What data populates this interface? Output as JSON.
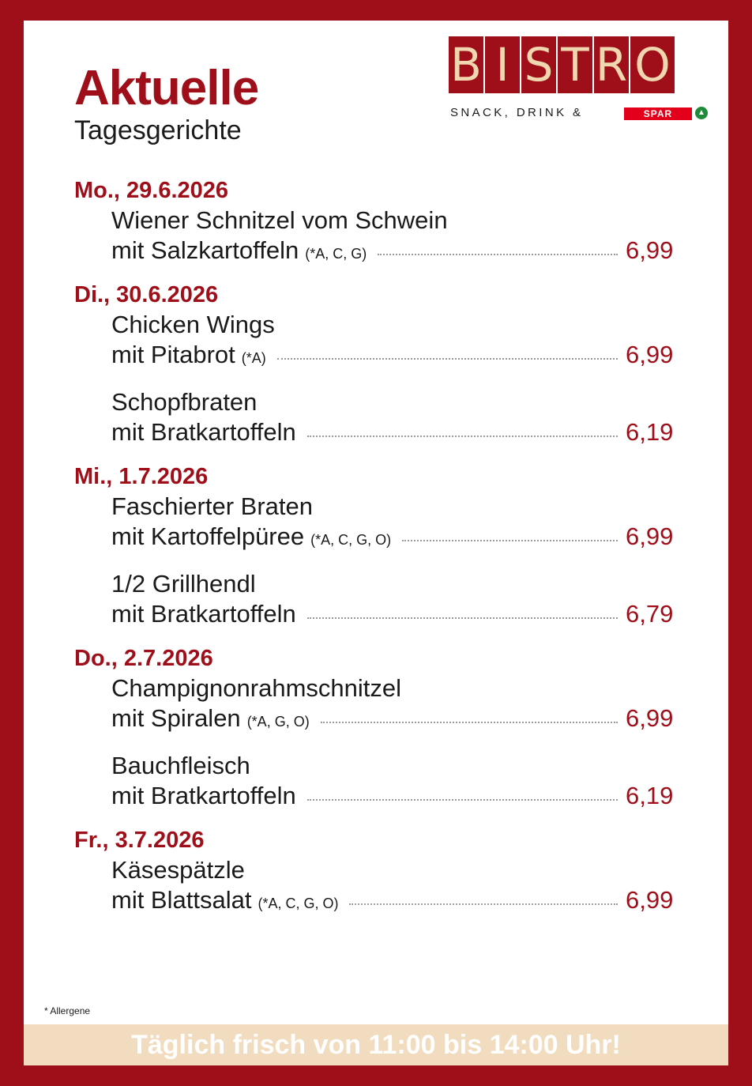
{
  "header": {
    "title": "Aktuelle",
    "subtitle": "Tagesgerichte"
  },
  "logo": {
    "letters": [
      "B",
      "I",
      "S",
      "T",
      "R",
      "O"
    ],
    "tagline": "SNACK, DRINK &",
    "partner": "SPAR"
  },
  "days": [
    {
      "title": "Mo., 29.6.2026",
      "dishes": [
        {
          "name": "Wiener Schnitzel vom Schwein",
          "side": "mit Salzkartoffeln",
          "allergens": "(*A, C, G)",
          "price": "6,99"
        }
      ]
    },
    {
      "title": "Di., 30.6.2026",
      "dishes": [
        {
          "name": "Chicken Wings",
          "side": "mit Pitabrot",
          "allergens": "(*A)",
          "price": "6,99"
        },
        {
          "name": "Schopfbraten",
          "side": "mit Bratkartoffeln",
          "allergens": "",
          "price": "6,19"
        }
      ]
    },
    {
      "title": "Mi., 1.7.2026",
      "dishes": [
        {
          "name": "Faschierter Braten",
          "side": "mit Kartoffelpüree",
          "allergens": "(*A, C, G, O)",
          "price": "6,99"
        },
        {
          "name": "1/2 Grillhendl",
          "side": "mit Bratkartoffeln",
          "allergens": "",
          "price": "6,79"
        }
      ]
    },
    {
      "title": "Do., 2.7.2026",
      "dishes": [
        {
          "name": "Champignonrahmschnitzel",
          "side": "mit Spiralen",
          "allergens": "(*A, G, O)",
          "price": "6,99"
        },
        {
          "name": "Bauchfleisch",
          "side": "mit Bratkartoffeln",
          "allergens": "",
          "price": "6,19"
        }
      ]
    },
    {
      "title": "Fr., 3.7.2026",
      "dishes": [
        {
          "name": "Käsespätzle",
          "side": "mit Blattsalat",
          "allergens": "(*A, C, G, O)",
          "price": "6,99"
        }
      ]
    }
  ],
  "footnote": "* Allergene",
  "banner": "Täglich frisch von 11:00 bis 14:00 Uhr!",
  "colors": {
    "accent": "#9e0f1a",
    "banner_bg": "#f2dcbf",
    "logo_letter": "#f1d7b0",
    "spar_red": "#e2001a",
    "spar_green": "#1f8a3a"
  }
}
